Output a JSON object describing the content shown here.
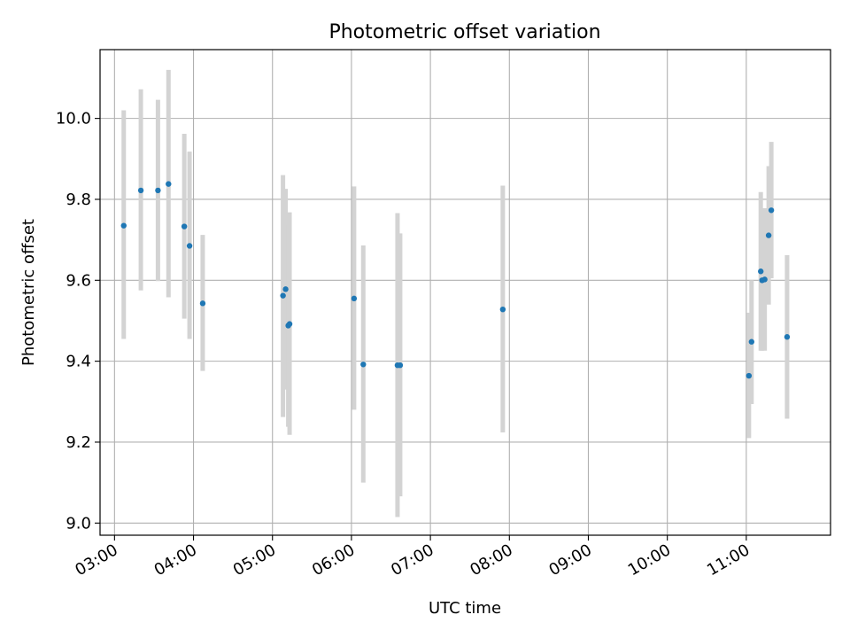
{
  "chart_data": {
    "type": "scatter",
    "title": "Photometric offset variation",
    "xlabel": "UTC time",
    "ylabel": "Photometric offset",
    "x_ticks": [
      "03:00",
      "04:00",
      "05:00",
      "06:00",
      "07:00",
      "08:00",
      "09:00",
      "10:00",
      "11:00"
    ],
    "y_ticks": [
      "9.0",
      "9.2",
      "9.4",
      "9.6",
      "9.8",
      "10.0"
    ],
    "x_tick_values": [
      "03:00",
      "04:00",
      "05:00",
      "06:00",
      "07:00",
      "08:00",
      "09:00",
      "10:00",
      "11:00"
    ],
    "y_tick_values": [
      9.0,
      9.2,
      9.4,
      9.6,
      9.8,
      10.0
    ],
    "xlim": [
      "02:49",
      "12:04"
    ],
    "ylim": [
      8.97,
      10.17
    ],
    "grid": true,
    "colors": {
      "point": "#1f77b4",
      "errorbar": "#d3d3d3",
      "grid": "#b0b0b0"
    },
    "points": [
      {
        "time": "03:07",
        "y": 9.735,
        "lo": 9.455,
        "hi": 10.02
      },
      {
        "time": "03:20",
        "y": 9.822,
        "lo": 9.575,
        "hi": 10.072
      },
      {
        "time": "03:33",
        "y": 9.822,
        "lo": 9.598,
        "hi": 10.046
      },
      {
        "time": "03:41",
        "y": 9.838,
        "lo": 9.558,
        "hi": 10.12
      },
      {
        "time": "03:53",
        "y": 9.733,
        "lo": 9.505,
        "hi": 9.962
      },
      {
        "time": "03:57",
        "y": 9.685,
        "lo": 9.455,
        "hi": 9.918
      },
      {
        "time": "04:07",
        "y": 9.543,
        "lo": 9.376,
        "hi": 9.712
      },
      {
        "time": "05:08",
        "y": 9.562,
        "lo": 9.262,
        "hi": 9.86
      },
      {
        "time": "05:10",
        "y": 9.578,
        "lo": 9.33,
        "hi": 9.826
      },
      {
        "time": "05:12",
        "y": 9.488,
        "lo": 9.238,
        "hi": 9.738
      },
      {
        "time": "05:13",
        "y": 9.492,
        "lo": 9.218,
        "hi": 9.768
      },
      {
        "time": "06:02",
        "y": 9.555,
        "lo": 9.28,
        "hi": 9.832
      },
      {
        "time": "06:09",
        "y": 9.392,
        "lo": 9.1,
        "hi": 9.686
      },
      {
        "time": "06:35",
        "y": 9.39,
        "lo": 9.015,
        "hi": 9.766
      },
      {
        "time": "06:37",
        "y": 9.39,
        "lo": 9.066,
        "hi": 9.716
      },
      {
        "time": "07:55",
        "y": 9.528,
        "lo": 9.224,
        "hi": 9.834
      },
      {
        "time": "11:02",
        "y": 9.364,
        "lo": 9.21,
        "hi": 9.52
      },
      {
        "time": "11:04",
        "y": 9.448,
        "lo": 9.294,
        "hi": 9.6
      },
      {
        "time": "11:11",
        "y": 9.622,
        "lo": 9.426,
        "hi": 9.818
      },
      {
        "time": "11:12",
        "y": 9.6,
        "lo": 9.426,
        "hi": 9.776
      },
      {
        "time": "11:14",
        "y": 9.602,
        "lo": 9.426,
        "hi": 9.778
      },
      {
        "time": "11:17",
        "y": 9.711,
        "lo": 9.54,
        "hi": 9.882
      },
      {
        "time": "11:19",
        "y": 9.773,
        "lo": 9.605,
        "hi": 9.942
      },
      {
        "time": "11:31",
        "y": 9.46,
        "lo": 9.258,
        "hi": 9.662
      }
    ]
  }
}
